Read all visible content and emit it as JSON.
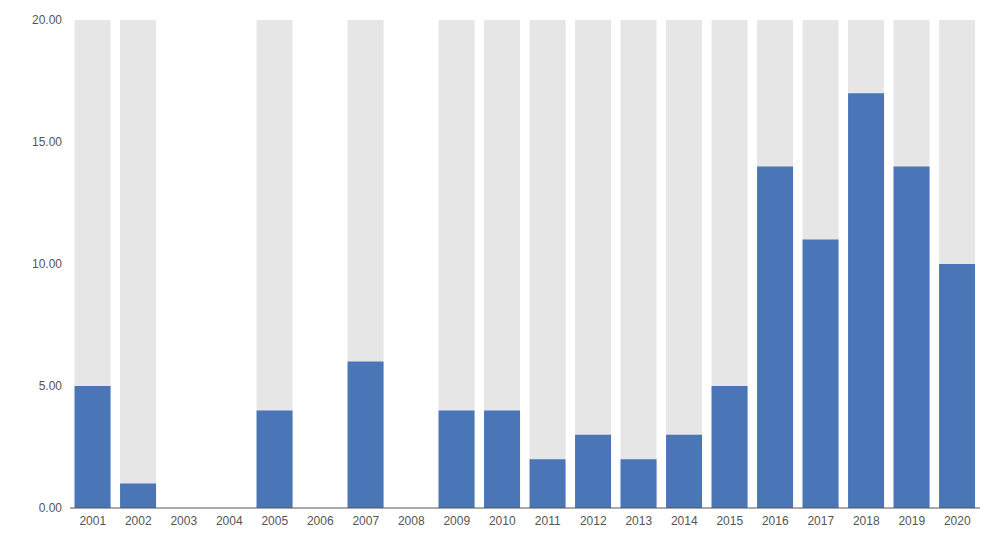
{
  "chart_data": {
    "type": "bar",
    "categories": [
      "2001",
      "2002",
      "2003",
      "2004",
      "2005",
      "2006",
      "2007",
      "2008",
      "2009",
      "2010",
      "2011",
      "2012",
      "2013",
      "2014",
      "2015",
      "2016",
      "2017",
      "2018",
      "2019",
      "2020"
    ],
    "values": [
      5,
      1,
      0,
      0,
      4,
      0,
      6,
      0,
      4,
      4,
      2,
      3,
      2,
      3,
      5,
      14,
      11,
      17,
      14,
      10
    ],
    "color": "#4a76b8",
    "ylim": [
      0,
      20
    ],
    "yticks": [
      {
        "value": 0,
        "label": "0.00"
      },
      {
        "value": 5,
        "label": "5.00"
      },
      {
        "value": 10,
        "label": "10.00"
      },
      {
        "value": 15,
        "label": "15.00"
      },
      {
        "value": 20,
        "label": "20.00"
      }
    ],
    "grid": false
  }
}
